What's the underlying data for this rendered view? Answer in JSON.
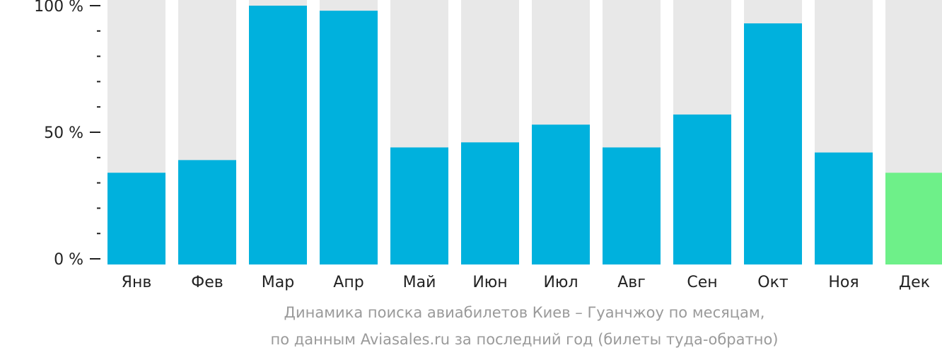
{
  "chart_data": {
    "type": "bar",
    "categories": [
      "Янв",
      "Фев",
      "Мар",
      "Апр",
      "Май",
      "Июн",
      "Июл",
      "Авг",
      "Сен",
      "Окт",
      "Ноя",
      "Дек"
    ],
    "values": [
      34,
      39,
      100,
      98,
      44,
      46,
      53,
      44,
      57,
      93,
      42,
      34
    ],
    "ylim": [
      0,
      100
    ],
    "yticks": [
      {
        "value": 0,
        "label": "0 %"
      },
      {
        "value": 50,
        "label": "50 %"
      },
      {
        "value": 100,
        "label": "100 %"
      }
    ],
    "minor_tick_step": 10,
    "highlight_index": 11,
    "colors": {
      "bar": "#00b1dd",
      "highlight_bar": "#6ef089",
      "track": "#e8e8e8",
      "axis_text": "#222222",
      "caption_text": "#9a9a9a"
    },
    "caption": [
      "Динамика поиска авиабилетов Киев – Гуанчжоу по месяцам,",
      "по данным Aviasales.ru за последний год (билеты туда-обратно)"
    ],
    "legend": "none",
    "grid": false
  }
}
